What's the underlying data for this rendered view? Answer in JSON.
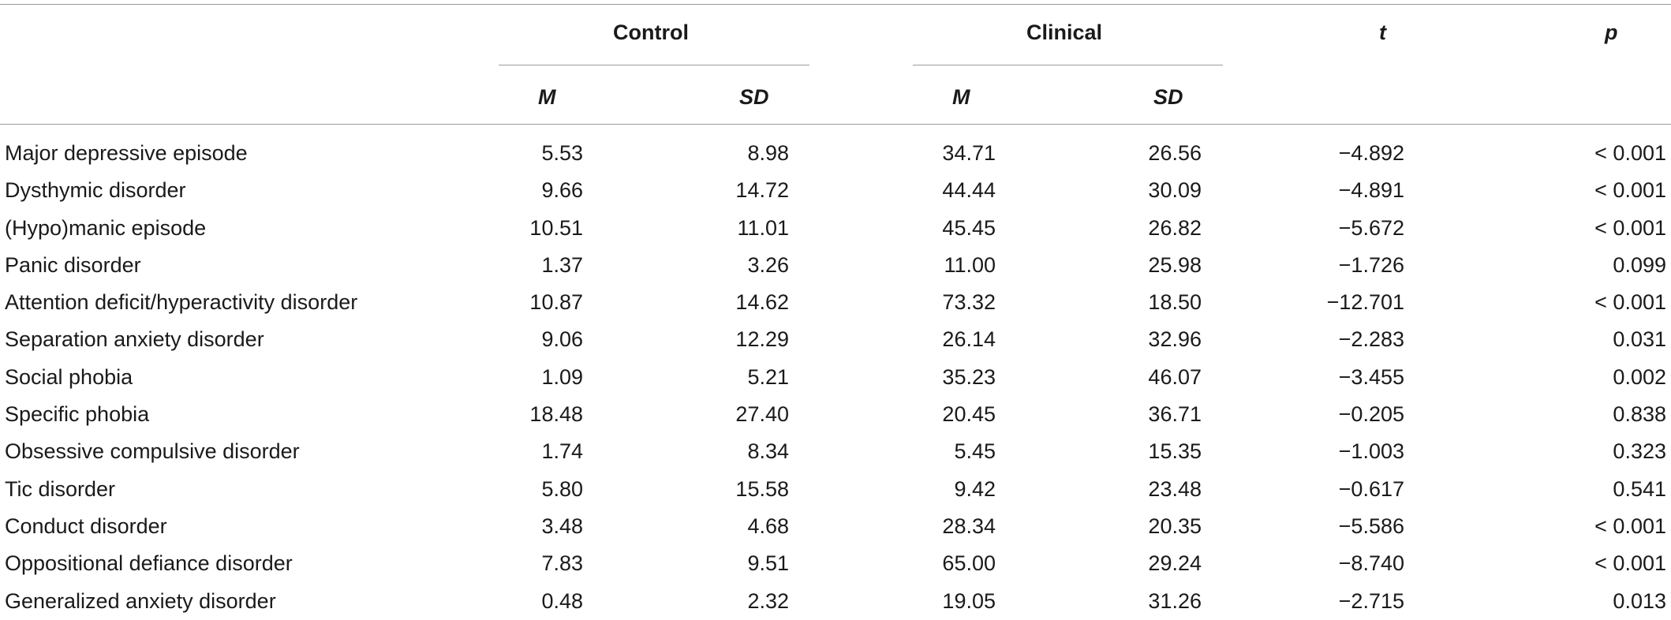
{
  "table": {
    "group_headers": {
      "control": "Control",
      "clinical": "Clinical",
      "t": "t",
      "p": "p"
    },
    "sub_headers": {
      "m1": "M",
      "sd1": "SD",
      "m2": "M",
      "sd2": "SD"
    },
    "rows": [
      {
        "label": "Major depressive episode",
        "m1": "5.53",
        "sd1": "8.98",
        "m2": "34.71",
        "sd2": "26.56",
        "t": "−4.892",
        "p": "< 0.001"
      },
      {
        "label": "Dysthymic disorder",
        "m1": "9.66",
        "sd1": "14.72",
        "m2": "44.44",
        "sd2": "30.09",
        "t": "−4.891",
        "p": "< 0.001"
      },
      {
        "label": "(Hypo)manic episode",
        "m1": "10.51",
        "sd1": "11.01",
        "m2": "45.45",
        "sd2": "26.82",
        "t": "−5.672",
        "p": "< 0.001"
      },
      {
        "label": "Panic disorder",
        "m1": "1.37",
        "sd1": "3.26",
        "m2": "11.00",
        "sd2": "25.98",
        "t": "−1.726",
        "p": "0.099"
      },
      {
        "label": "Attention deficit/hyperactivity disorder",
        "m1": "10.87",
        "sd1": "14.62",
        "m2": "73.32",
        "sd2": "18.50",
        "t": "−12.701",
        "p": "< 0.001"
      },
      {
        "label": "Separation anxiety disorder",
        "m1": "9.06",
        "sd1": "12.29",
        "m2": "26.14",
        "sd2": "32.96",
        "t": "−2.283",
        "p": "0.031"
      },
      {
        "label": "Social phobia",
        "m1": "1.09",
        "sd1": "5.21",
        "m2": "35.23",
        "sd2": "46.07",
        "t": "−3.455",
        "p": "0.002"
      },
      {
        "label": "Specific phobia",
        "m1": "18.48",
        "sd1": "27.40",
        "m2": "20.45",
        "sd2": "36.71",
        "t": "−0.205",
        "p": "0.838"
      },
      {
        "label": "Obsessive compulsive disorder",
        "m1": "1.74",
        "sd1": "8.34",
        "m2": "5.45",
        "sd2": "15.35",
        "t": "−1.003",
        "p": "0.323"
      },
      {
        "label": "Tic disorder",
        "m1": "5.80",
        "sd1": "15.58",
        "m2": "9.42",
        "sd2": "23.48",
        "t": "−0.617",
        "p": "0.541"
      },
      {
        "label": "Conduct disorder",
        "m1": "3.48",
        "sd1": "4.68",
        "m2": "28.34",
        "sd2": "20.35",
        "t": "−5.586",
        "p": "< 0.001"
      },
      {
        "label": "Oppositional defiance disorder",
        "m1": "7.83",
        "sd1": "9.51",
        "m2": "65.00",
        "sd2": "29.24",
        "t": "−8.740",
        "p": "< 0.001"
      },
      {
        "label": "Generalized anxiety disorder",
        "m1": "0.48",
        "sd1": "2.32",
        "m2": "19.05",
        "sd2": "31.26",
        "t": "−2.715",
        "p": "0.013"
      }
    ]
  }
}
